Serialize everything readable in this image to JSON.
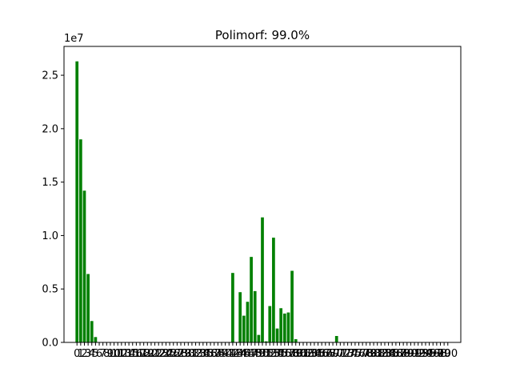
{
  "chart_data": {
    "type": "bar",
    "title": "Polimorf: 99.0%",
    "xlabel": "",
    "ylabel": "",
    "y_offset_text": "1e7",
    "bar_color": "#008000",
    "xlim": [
      -3.5,
      103.5
    ],
    "ylim": [
      0,
      27700000
    ],
    "y_ticks": [
      0,
      5000000,
      10000000,
      15000000,
      20000000,
      25000000
    ],
    "y_tick_labels": [
      "0.0",
      "0.5",
      "1.0",
      "1.5",
      "2.0",
      "2.5"
    ],
    "x_ticks": [
      0,
      1,
      2,
      3,
      4,
      5,
      6,
      7,
      8,
      9,
      10,
      11,
      12,
      13,
      14,
      15,
      16,
      17,
      18,
      19,
      20,
      21,
      22,
      23,
      24,
      25,
      26,
      27,
      28,
      29,
      30,
      31,
      32,
      33,
      34,
      35,
      36,
      37,
      38,
      39,
      40,
      41,
      42,
      43,
      44,
      45,
      46,
      47,
      48,
      49,
      50,
      51,
      52,
      53,
      54,
      55,
      56,
      57,
      58,
      59,
      60,
      61,
      62,
      63,
      64,
      65,
      66,
      67,
      68,
      69,
      70,
      71,
      72,
      73,
      74,
      75,
      76,
      77,
      78,
      79,
      80,
      81,
      82,
      83,
      84,
      85,
      86,
      87,
      88,
      89,
      90,
      91,
      92,
      93,
      94,
      95,
      96,
      97,
      98,
      99,
      100
    ],
    "x_tick_labels": [
      "0",
      "1",
      "2",
      "3",
      "4",
      "5",
      "6",
      "7",
      "8",
      "9",
      "10",
      "11",
      "12",
      "13",
      "14",
      "15",
      "16",
      "17",
      "18",
      "19",
      "20",
      "21",
      "22",
      "23",
      "24",
      "25",
      "26",
      "27",
      "28",
      "29",
      "30",
      "31",
      "32",
      "33",
      "34",
      "35",
      "36",
      "37",
      "38",
      "39",
      "40",
      "41",
      "42",
      "43",
      "44",
      "45",
      "46",
      "47",
      "48",
      "49",
      "50",
      "51",
      "52",
      "53",
      "54",
      "55",
      "56",
      "57",
      "58",
      "59",
      "60",
      "61",
      "62",
      "63",
      "64",
      "65",
      "66",
      "67",
      "68",
      "69",
      "70",
      "71",
      "72",
      "73",
      "74",
      "75",
      "76",
      "77",
      "78",
      "79",
      "80",
      "81",
      "82",
      "83",
      "84",
      "85",
      "86",
      "87",
      "88",
      "89",
      "90",
      "91",
      "92",
      "93",
      "94",
      "95",
      "96",
      "97",
      "98",
      "99",
      "100"
    ],
    "x": [
      0,
      1,
      2,
      3,
      4,
      5,
      6,
      7,
      8,
      9,
      10,
      11,
      12,
      13,
      14,
      15,
      16,
      17,
      18,
      19,
      20,
      21,
      22,
      23,
      24,
      25,
      26,
      27,
      28,
      29,
      30,
      31,
      32,
      33,
      34,
      35,
      36,
      37,
      38,
      39,
      40,
      41,
      42,
      43,
      44,
      45,
      46,
      47,
      48,
      49,
      50,
      51,
      52,
      53,
      54,
      55,
      56,
      57,
      58,
      59,
      60,
      61,
      62,
      63,
      64,
      65,
      66,
      67,
      68,
      69,
      70,
      71,
      72,
      73,
      74,
      75,
      76,
      77,
      78,
      79,
      80,
      81,
      82,
      83,
      84,
      85,
      86,
      87,
      88,
      89,
      90,
      91,
      92,
      93,
      94,
      95,
      96,
      97,
      98,
      99,
      100
    ],
    "values": [
      26300000,
      19000000,
      14200000,
      6400000,
      2000000,
      500000,
      0,
      0,
      0,
      0,
      0,
      0,
      0,
      0,
      0,
      0,
      0,
      0,
      0,
      0,
      0,
      0,
      0,
      0,
      0,
      0,
      0,
      0,
      0,
      0,
      0,
      0,
      0,
      0,
      0,
      0,
      0,
      0,
      0,
      0,
      0,
      0,
      6500000,
      0,
      4700000,
      2500000,
      3800000,
      8000000,
      4800000,
      700000,
      11700000,
      100000,
      3400000,
      9800000,
      1300000,
      3200000,
      2700000,
      2800000,
      6700000,
      300000,
      0,
      0,
      0,
      0,
      0,
      0,
      0,
      0,
      0,
      0,
      600000,
      0,
      0,
      0,
      0,
      0,
      0,
      0,
      0,
      0,
      0,
      0,
      0,
      0,
      0,
      0,
      0,
      0,
      0,
      0,
      0,
      0,
      0,
      0,
      0,
      0,
      0,
      0,
      0,
      0,
      0
    ],
    "grid": false,
    "legend": "none"
  }
}
